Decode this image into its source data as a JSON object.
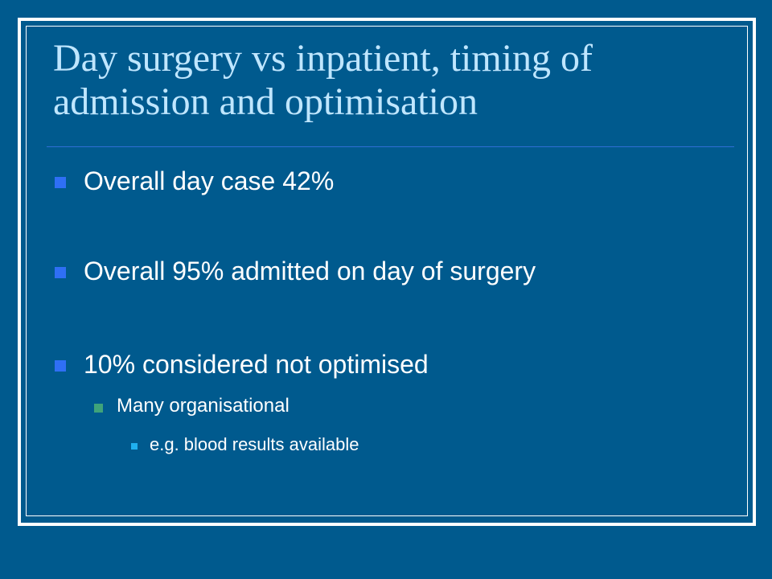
{
  "slide": {
    "title": "Day surgery vs inpatient, timing of admission and optimisation",
    "bullets": [
      {
        "text": "Overall day case 42%",
        "level": 1
      },
      {
        "text": "Overall 95% admitted on day of surgery",
        "level": 1
      },
      {
        "text": "10% considered not optimised",
        "level": 1
      },
      {
        "text": "Many organisational",
        "level": 2
      },
      {
        "text": "e.g. blood results available",
        "level": 3
      }
    ]
  },
  "colors": {
    "background": "#005a8e",
    "title_text": "#bfe6ff",
    "body_text": "#ffffff",
    "bullet_level1": "#2f6ff5",
    "bullet_level2": "#3fa37a",
    "bullet_level3": "#1fb0f0",
    "frame": "#ffffff"
  }
}
